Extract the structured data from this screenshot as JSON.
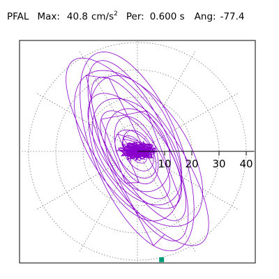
{
  "header": {
    "station": "PFAL",
    "max_label": "Max:",
    "max_value": "40.8",
    "max_unit": "cm/s",
    "max_unit_exp": "2",
    "period_label": "Per:",
    "period_value": "0.600 s",
    "angle_label": "Ang:",
    "angle_value": "-77.4"
  },
  "chart_data": {
    "type": "polar",
    "rings": [
      10,
      20,
      30,
      40
    ],
    "tick_labels": [
      "10",
      "20",
      "30",
      "40"
    ],
    "r_max": 43,
    "spokes_deg": [
      0,
      30,
      60,
      90,
      120,
      150,
      180,
      210,
      240,
      270,
      300,
      330
    ],
    "grid": "dotted",
    "trace_color": "#8800cc",
    "marker_color": "#009977",
    "max_point": {
      "r": 40.8,
      "angle_deg": -77.4
    },
    "trace_orientation_deg": -60,
    "envelope": [
      {
        "major": 41,
        "minor": 14
      },
      {
        "major": 39,
        "minor": 16
      },
      {
        "major": 36,
        "minor": 12
      },
      {
        "major": 33,
        "minor": 17
      },
      {
        "major": 30,
        "minor": 10
      },
      {
        "major": 28,
        "minor": 15
      },
      {
        "major": 25,
        "minor": 11
      },
      {
        "major": 22,
        "minor": 13
      },
      {
        "major": 19,
        "minor": 8
      },
      {
        "major": 16,
        "minor": 11
      },
      {
        "major": 13,
        "minor": 7
      },
      {
        "major": 10,
        "minor": 6
      },
      {
        "major": 8,
        "minor": 5
      },
      {
        "major": 6,
        "minor": 3
      }
    ]
  }
}
